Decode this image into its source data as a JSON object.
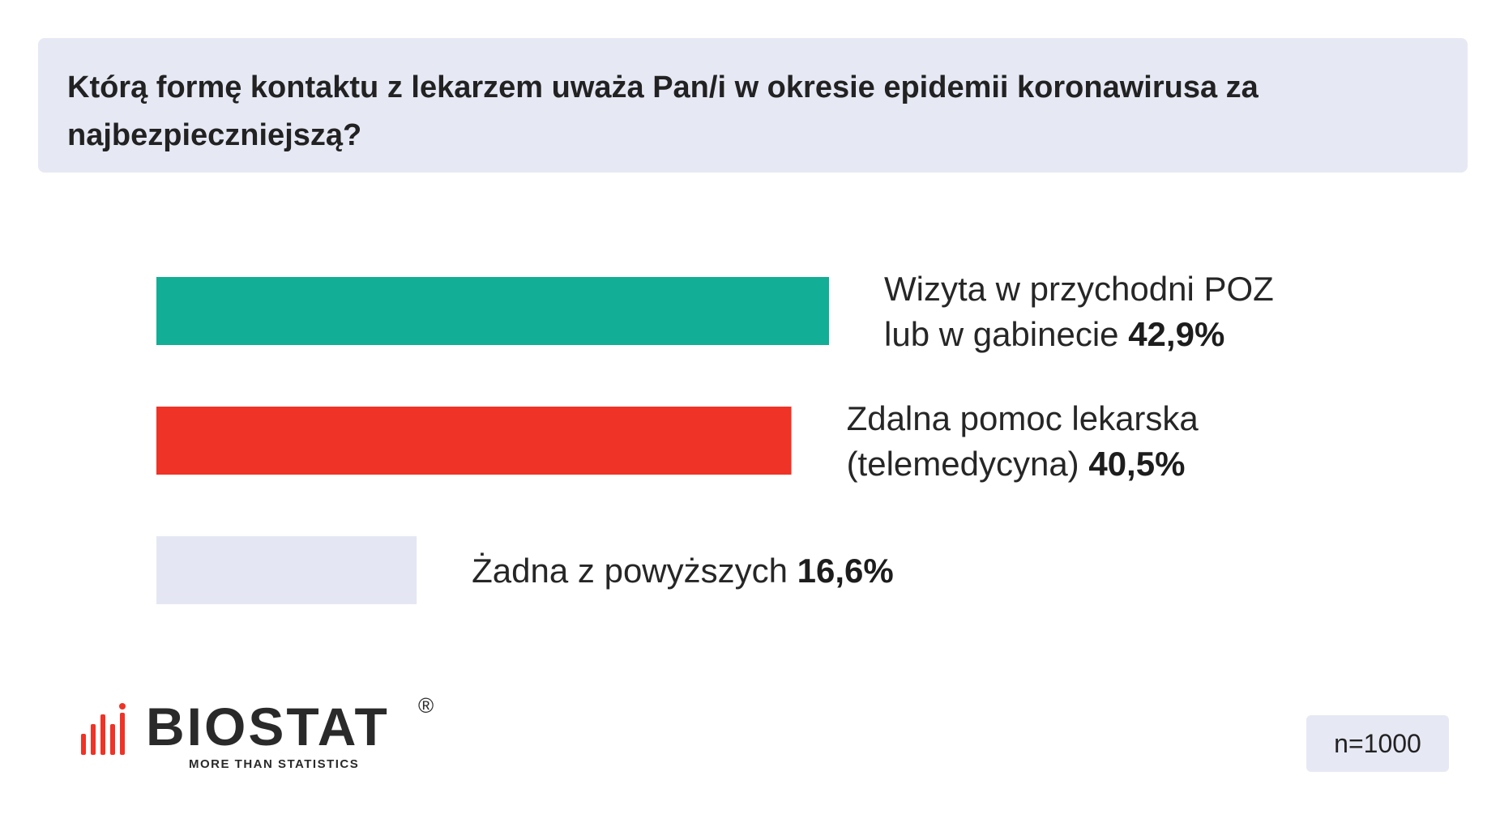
{
  "question": "Którą formę kontaktu z lekarzem uważa Pan/i w okresie epidemii koronawirusa za najbezpieczniejszą?",
  "chart_data": {
    "type": "bar",
    "orientation": "horizontal",
    "title": "Którą formę kontaktu z lekarzem uważa Pan/i w okresie epidemii koronawirusa za najbezpieczniejszą?",
    "unit": "%",
    "categories": [
      [
        "Wizyta w przychodni POZ",
        "lub w gabinecie"
      ],
      [
        "Zdalna pomoc lekarska",
        "(telemedycyna)"
      ],
      [
        "Żadna z powyższych"
      ]
    ],
    "values": [
      42.9,
      40.5,
      16.6
    ],
    "value_labels": [
      "42,9%",
      "40,5%",
      "16,6%"
    ],
    "colors": [
      "#12ae96",
      "#ef3326",
      "#e4e7f3"
    ],
    "xlim": [
      0,
      100
    ],
    "grid": false,
    "legend": "none"
  },
  "logo": {
    "name": "BIOSTAT",
    "registered": "®",
    "tagline": "MORE THAN STATISTICS",
    "mark_colors": [
      "#ef3326"
    ]
  },
  "sample_size": "n=1000"
}
